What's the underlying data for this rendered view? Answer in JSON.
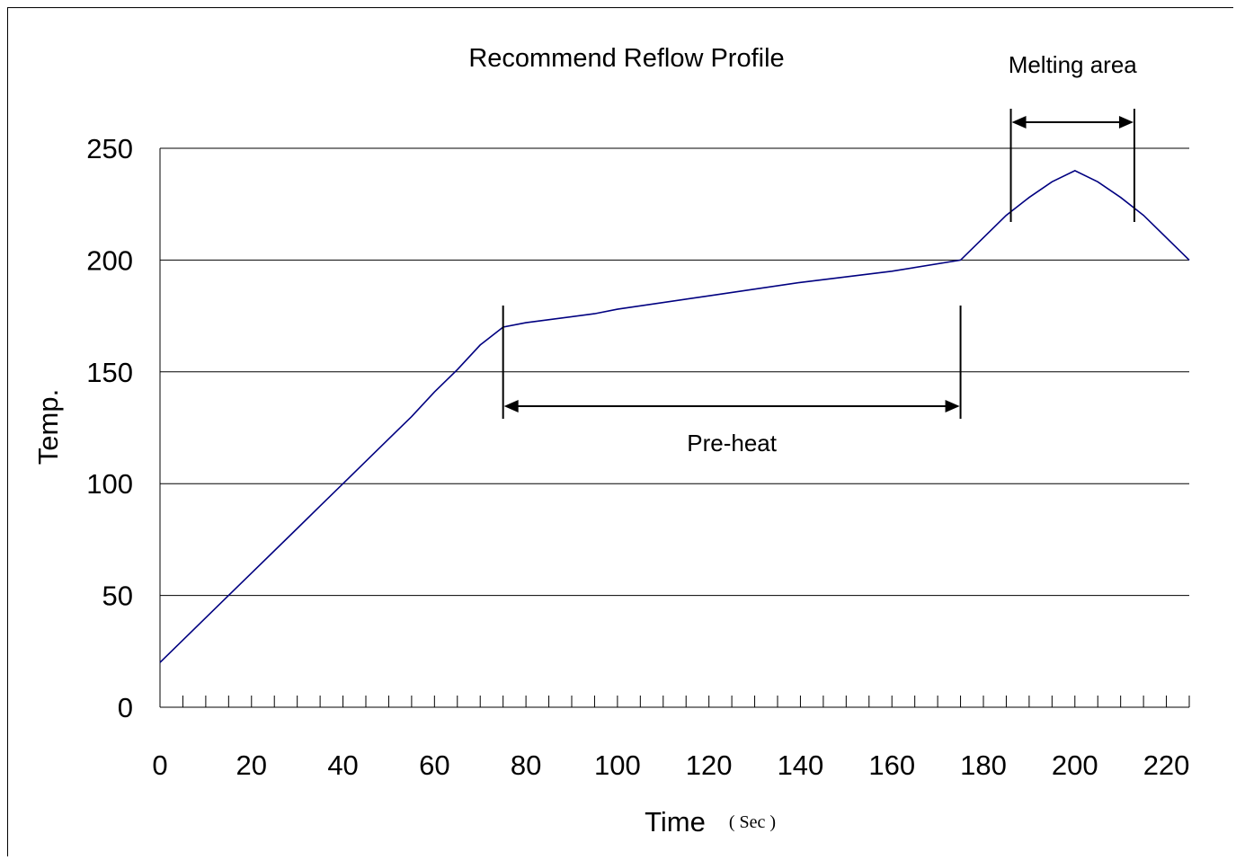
{
  "chart_data": {
    "type": "line",
    "title": "Recommend Reflow Profile",
    "xlabel": "Time",
    "xlabel_unit": "( Sec )",
    "ylabel": "Temp.",
    "xlim": [
      0,
      225
    ],
    "ylim": [
      0,
      250
    ],
    "x_ticks": [
      0,
      20,
      40,
      60,
      80,
      100,
      120,
      140,
      160,
      180,
      200,
      220
    ],
    "y_ticks": [
      0,
      50,
      100,
      150,
      200,
      250
    ],
    "grid": "horizontal",
    "legend": "none",
    "series": [
      {
        "color": "#000080",
        "points": [
          [
            0,
            20
          ],
          [
            15,
            50
          ],
          [
            20,
            60
          ],
          [
            30,
            80
          ],
          [
            35,
            90
          ],
          [
            40,
            100
          ],
          [
            45,
            110
          ],
          [
            50,
            120
          ],
          [
            55,
            130
          ],
          [
            60,
            141
          ],
          [
            65,
            151
          ],
          [
            70,
            162
          ],
          [
            75,
            170
          ],
          [
            80,
            172
          ],
          [
            95,
            176
          ],
          [
            100,
            178
          ],
          [
            120,
            184
          ],
          [
            140,
            190
          ],
          [
            160,
            195
          ],
          [
            175,
            200
          ],
          [
            185,
            220
          ],
          [
            190,
            228
          ],
          [
            195,
            235
          ],
          [
            200,
            240
          ],
          [
            205,
            235
          ],
          [
            210,
            228
          ],
          [
            215,
            220
          ],
          [
            225,
            200
          ]
        ]
      }
    ],
    "annotations": [
      {
        "label": "Pre-heat",
        "x_start": 75,
        "x_end": 175
      },
      {
        "label": "Melting area",
        "x_start": 186,
        "x_end": 213
      }
    ]
  }
}
